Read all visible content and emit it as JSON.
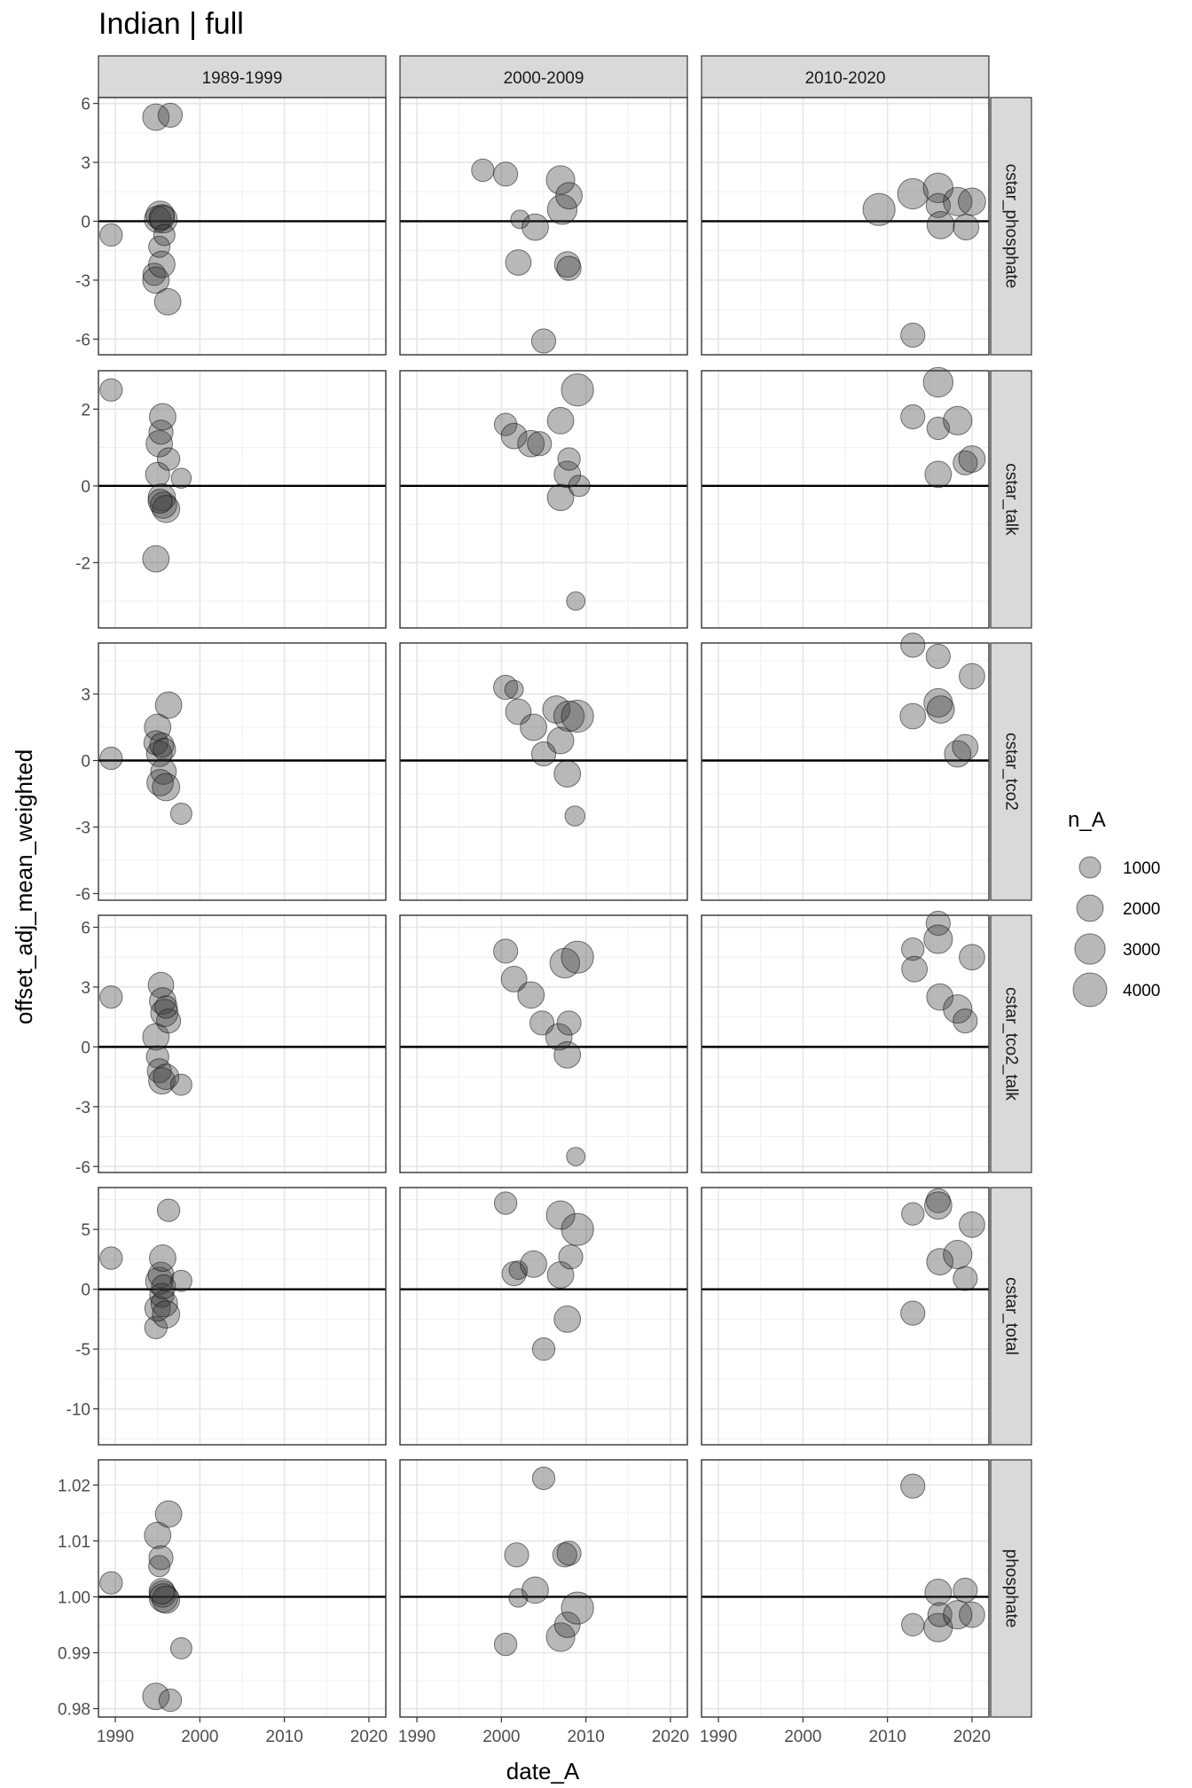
{
  "chart_data": {
    "type": "scatter",
    "title": "Indian | full",
    "xlabel": "date_A",
    "ylabel": "offset_adj_mean_weighted",
    "grid": true,
    "legend_position": "right",
    "point_color": "#333333",
    "point_alpha": 0.35,
    "reference_line": 0,
    "x_tick_labels": [
      "1990",
      "2000",
      "2010",
      "2020"
    ],
    "x_ticks": [
      1990,
      2000,
      2010,
      2020
    ],
    "xlim": [
      1988,
      2022
    ],
    "columns": [
      "1989-1999",
      "2000-2009",
      "2010-2020"
    ],
    "size_legend": {
      "title": "n_A",
      "labels": [
        "1000",
        "2000",
        "3000",
        "4000"
      ],
      "values": [
        1000,
        2000,
        3000,
        4000
      ]
    },
    "panels": [
      {
        "row": "cstar_phosphate",
        "ylim": [
          -6.8,
          6.3
        ],
        "ref": 0,
        "y_ticks": [
          -6,
          -3,
          0,
          3,
          6
        ],
        "y_tick_labels": [
          "-6",
          "-3",
          "0",
          "3",
          "6"
        ],
        "points": [
          [
            [
              1989.5,
              -0.7,
              1200
            ],
            [
              1994.8,
              5.3,
              2000
            ],
            [
              1996.5,
              5.4,
              1500
            ],
            [
              1994.6,
              -2.7,
              1200
            ],
            [
              1994.8,
              -3.0,
              2000
            ],
            [
              1995.0,
              0.1,
              2000
            ],
            [
              1995.3,
              0.3,
              2500
            ],
            [
              1995.5,
              0.2,
              1800
            ],
            [
              1995.7,
              0.1,
              2200
            ],
            [
              1995.2,
              -1.3,
              1000
            ],
            [
              1995.5,
              -2.2,
              2000
            ],
            [
              1996.2,
              -4.1,
              2000
            ],
            [
              1995.8,
              -0.7,
              1000
            ]
          ],
          [
            [
              1997.8,
              2.6,
              1200
            ],
            [
              2000.5,
              2.4,
              1500
            ],
            [
              2002.0,
              -2.1,
              1800
            ],
            [
              2002.2,
              0.1,
              600
            ],
            [
              2004.0,
              -0.3,
              2000
            ],
            [
              2005.0,
              -6.1,
              1500
            ],
            [
              2007.0,
              2.1,
              2500
            ],
            [
              2007.2,
              0.6,
              2800
            ],
            [
              2007.8,
              -2.2,
              1800
            ],
            [
              2008.0,
              -2.4,
              1500
            ],
            [
              2008.0,
              1.3,
              2000
            ]
          ],
          [
            [
              2009.0,
              0.6,
              3500
            ],
            [
              2013.0,
              1.4,
              3000
            ],
            [
              2013.0,
              -5.8,
              1500
            ],
            [
              2016.0,
              1.7,
              2800
            ],
            [
              2016.0,
              0.8,
              1500
            ],
            [
              2016.3,
              -0.2,
              2200
            ],
            [
              2018.3,
              1.0,
              2500
            ],
            [
              2019.3,
              -0.3,
              1800
            ],
            [
              2020.0,
              1.0,
              2200
            ]
          ]
        ]
      },
      {
        "row": "cstar_talk",
        "ylim": [
          -3.7,
          3.0
        ],
        "ref": 0,
        "y_ticks": [
          -2,
          0,
          2
        ],
        "y_tick_labels": [
          "-2",
          "0",
          "2"
        ],
        "points": [
          [
            [
              1989.5,
              2.5,
              1200
            ],
            [
              1994.8,
              -1.9,
              2000
            ],
            [
              1995.0,
              0.3,
              1500
            ],
            [
              1995.2,
              1.1,
              2000
            ],
            [
              1995.4,
              1.4,
              1500
            ],
            [
              1995.6,
              1.8,
              2000
            ],
            [
              1995.5,
              -0.3,
              2200
            ],
            [
              1995.7,
              -0.5,
              2000
            ],
            [
              1996.0,
              -0.6,
              2200
            ],
            [
              1995.3,
              -0.4,
              1500
            ],
            [
              1996.3,
              0.7,
              1200
            ],
            [
              1997.8,
              0.2,
              800
            ]
          ],
          [
            [
              2000.5,
              1.6,
              1200
            ],
            [
              2001.5,
              1.3,
              1800
            ],
            [
              2003.5,
              1.1,
              2000
            ],
            [
              2004.5,
              1.1,
              1500
            ],
            [
              2007.0,
              1.7,
              2000
            ],
            [
              2007.0,
              -0.3,
              2000
            ],
            [
              2007.8,
              0.3,
              2000
            ],
            [
              2008.0,
              0.7,
              1200
            ],
            [
              2008.8,
              -3.0,
              600
            ],
            [
              2009.0,
              2.5,
              3500
            ],
            [
              2009.2,
              0.0,
              1000
            ]
          ],
          [
            [
              2013.0,
              1.8,
              1500
            ],
            [
              2016.0,
              2.7,
              2800
            ],
            [
              2016.0,
              0.3,
              2000
            ],
            [
              2016.0,
              1.5,
              1200
            ],
            [
              2018.3,
              1.7,
              2500
            ],
            [
              2019.2,
              0.6,
              1500
            ],
            [
              2020.0,
              0.7,
              2000
            ]
          ]
        ]
      },
      {
        "row": "cstar_tco2",
        "ylim": [
          -6.3,
          5.3
        ],
        "ref": 0,
        "y_ticks": [
          -6,
          -3,
          0,
          3
        ],
        "y_tick_labels": [
          "-6",
          "-3",
          "0",
          "3"
        ],
        "points": [
          [
            [
              1989.5,
              0.1,
              1200
            ],
            [
              1994.8,
              0.8,
              1500
            ],
            [
              1995.0,
              1.5,
              2000
            ],
            [
              1995.2,
              0.3,
              1800
            ],
            [
              1995.5,
              0.7,
              1500
            ],
            [
              1995.7,
              -0.5,
              1800
            ],
            [
              1995.3,
              -1.0,
              2000
            ],
            [
              1996.0,
              -1.2,
              2200
            ],
            [
              1996.3,
              2.5,
              2000
            ],
            [
              1995.8,
              0.5,
              1200
            ],
            [
              1997.8,
              -2.4,
              1000
            ]
          ],
          [
            [
              2000.5,
              3.3,
              1500
            ],
            [
              2001.5,
              3.2,
              600
            ],
            [
              2002.0,
              2.2,
              1800
            ],
            [
              2003.8,
              1.5,
              2000
            ],
            [
              2005.0,
              0.3,
              1500
            ],
            [
              2006.5,
              2.3,
              2200
            ],
            [
              2007.0,
              0.9,
              2000
            ],
            [
              2007.8,
              -0.6,
              2000
            ],
            [
              2008.0,
              2.0,
              3000
            ],
            [
              2008.7,
              -2.5,
              800
            ],
            [
              2009.0,
              2.0,
              3500
            ]
          ],
          [
            [
              2013.0,
              2.0,
              1800
            ],
            [
              2013.0,
              5.2,
              1500
            ],
            [
              2016.0,
              4.7,
              1500
            ],
            [
              2016.0,
              2.6,
              2500
            ],
            [
              2016.3,
              2.3,
              2200
            ],
            [
              2018.3,
              0.3,
              2000
            ],
            [
              2019.2,
              0.6,
              1800
            ],
            [
              2020.0,
              3.8,
              1800
            ]
          ]
        ]
      },
      {
        "row": "cstar_tco2_talk",
        "ylim": [
          -6.3,
          6.6
        ],
        "ref": 0,
        "y_ticks": [
          -6,
          -3,
          0,
          3,
          6
        ],
        "y_tick_labels": [
          "-6",
          "-3",
          "0",
          "3",
          "6"
        ],
        "points": [
          [
            [
              1989.5,
              2.5,
              1200
            ],
            [
              1994.8,
              0.5,
              2000
            ],
            [
              1995.0,
              -0.5,
              1200
            ],
            [
              1995.2,
              -1.2,
              1500
            ],
            [
              1995.4,
              3.1,
              1800
            ],
            [
              1995.6,
              2.3,
              2000
            ],
            [
              1995.8,
              1.7,
              2200
            ],
            [
              1995.5,
              -1.7,
              2000
            ],
            [
              1996.0,
              -1.5,
              1800
            ],
            [
              1996.3,
              1.3,
              1500
            ],
            [
              1996.0,
              2.0,
              1200
            ],
            [
              1997.8,
              -1.9,
              1000
            ]
          ],
          [
            [
              2000.5,
              4.8,
              1500
            ],
            [
              2001.5,
              3.4,
              1800
            ],
            [
              2003.5,
              2.6,
              2000
            ],
            [
              2004.8,
              1.2,
              1500
            ],
            [
              2006.8,
              0.5,
              2000
            ],
            [
              2007.5,
              4.2,
              2800
            ],
            [
              2007.8,
              -0.4,
              2000
            ],
            [
              2008.0,
              1.2,
              1500
            ],
            [
              2008.8,
              -5.5,
              600
            ],
            [
              2009.0,
              4.5,
              3500
            ]
          ],
          [
            [
              2013.0,
              4.9,
              1200
            ],
            [
              2013.2,
              3.9,
              1800
            ],
            [
              2016.0,
              6.2,
              1500
            ],
            [
              2016.0,
              5.4,
              2500
            ],
            [
              2016.2,
              2.5,
              2000
            ],
            [
              2018.3,
              1.9,
              2500
            ],
            [
              2019.2,
              1.3,
              1500
            ],
            [
              2020.0,
              4.5,
              1800
            ]
          ]
        ]
      },
      {
        "row": "cstar_total",
        "ylim": [
          -13.0,
          8.5
        ],
        "ref": 0,
        "y_ticks": [
          -10,
          -5,
          0,
          5
        ],
        "y_tick_labels": [
          "-10",
          "-5",
          "0",
          "5"
        ],
        "points": [
          [
            [
              1989.5,
              2.6,
              1200
            ],
            [
              1994.8,
              -3.2,
              1200
            ],
            [
              1995.0,
              -1.6,
              1800
            ],
            [
              1995.2,
              0.7,
              2200
            ],
            [
              1995.4,
              1.2,
              1800
            ],
            [
              1995.6,
              2.6,
              2000
            ],
            [
              1995.5,
              -0.5,
              1500
            ],
            [
              1995.8,
              -1.2,
              2000
            ],
            [
              1996.0,
              -2.1,
              2200
            ],
            [
              1996.3,
              6.6,
              1200
            ],
            [
              1995.7,
              0.2,
              1500
            ],
            [
              1997.8,
              0.7,
              1000
            ]
          ],
          [
            [
              2000.5,
              7.2,
              1200
            ],
            [
              2001.5,
              1.3,
              1500
            ],
            [
              2002.0,
              1.6,
              600
            ],
            [
              2003.8,
              2.1,
              2000
            ],
            [
              2005.0,
              -5.0,
              1200
            ],
            [
              2007.0,
              6.2,
              2500
            ],
            [
              2007.0,
              1.2,
              2000
            ],
            [
              2007.8,
              -2.5,
              2000
            ],
            [
              2008.2,
              2.7,
              1500
            ],
            [
              2009.0,
              5.0,
              3500
            ]
          ],
          [
            [
              2013.0,
              6.3,
              1200
            ],
            [
              2013.0,
              -2.0,
              1500
            ],
            [
              2016.0,
              7.4,
              1500
            ],
            [
              2016.0,
              7.0,
              2200
            ],
            [
              2016.2,
              2.3,
              2000
            ],
            [
              2018.3,
              2.9,
              2500
            ],
            [
              2019.2,
              0.9,
              1500
            ],
            [
              2020.0,
              5.4,
              1800
            ]
          ]
        ]
      },
      {
        "row": "phosphate",
        "ylim": [
          0.9785,
          1.0245
        ],
        "ref": 1.0,
        "y_ticks": [
          0.98,
          0.99,
          1.0,
          1.01,
          1.02
        ],
        "y_tick_labels": [
          "0.98",
          "0.99",
          "1.00",
          "1.01",
          "1.02"
        ],
        "points": [
          [
            [
              1989.5,
              1.0025,
              1200
            ],
            [
              1994.8,
              0.9822,
              2000
            ],
            [
              1995.0,
              1.011,
              2000
            ],
            [
              1995.2,
              1.0055,
              1000
            ],
            [
              1995.4,
              1.007,
              1500
            ],
            [
              1995.6,
              1.0005,
              2000
            ],
            [
              1995.7,
              0.9998,
              2500
            ],
            [
              1996.0,
              0.9995,
              2200
            ],
            [
              1995.5,
              1.001,
              1800
            ],
            [
              1996.3,
              1.0148,
              2000
            ],
            [
              1996.5,
              0.9815,
              1200
            ],
            [
              1997.8,
              0.9908,
              1000
            ]
          ],
          [
            [
              2000.5,
              0.9915,
              1200
            ],
            [
              2001.8,
              1.0075,
              1500
            ],
            [
              2002.0,
              0.9998,
              600
            ],
            [
              2004.0,
              1.0012,
              2000
            ],
            [
              2005.0,
              1.0212,
              1200
            ],
            [
              2007.0,
              0.9928,
              2500
            ],
            [
              2007.5,
              1.0075,
              1500
            ],
            [
              2007.8,
              0.995,
              1800
            ],
            [
              2008.0,
              1.0078,
              1500
            ],
            [
              2009.0,
              0.998,
              3500
            ]
          ],
          [
            [
              2013.0,
              0.995,
              1200
            ],
            [
              2013.0,
              1.0198,
              1500
            ],
            [
              2016.0,
              1.0008,
              2000
            ],
            [
              2016.0,
              0.9945,
              2500
            ],
            [
              2016.2,
              0.9968,
              1500
            ],
            [
              2018.3,
              0.9968,
              2500
            ],
            [
              2019.2,
              1.0012,
              1500
            ],
            [
              2020.0,
              0.9968,
              1800
            ]
          ]
        ]
      }
    ]
  }
}
